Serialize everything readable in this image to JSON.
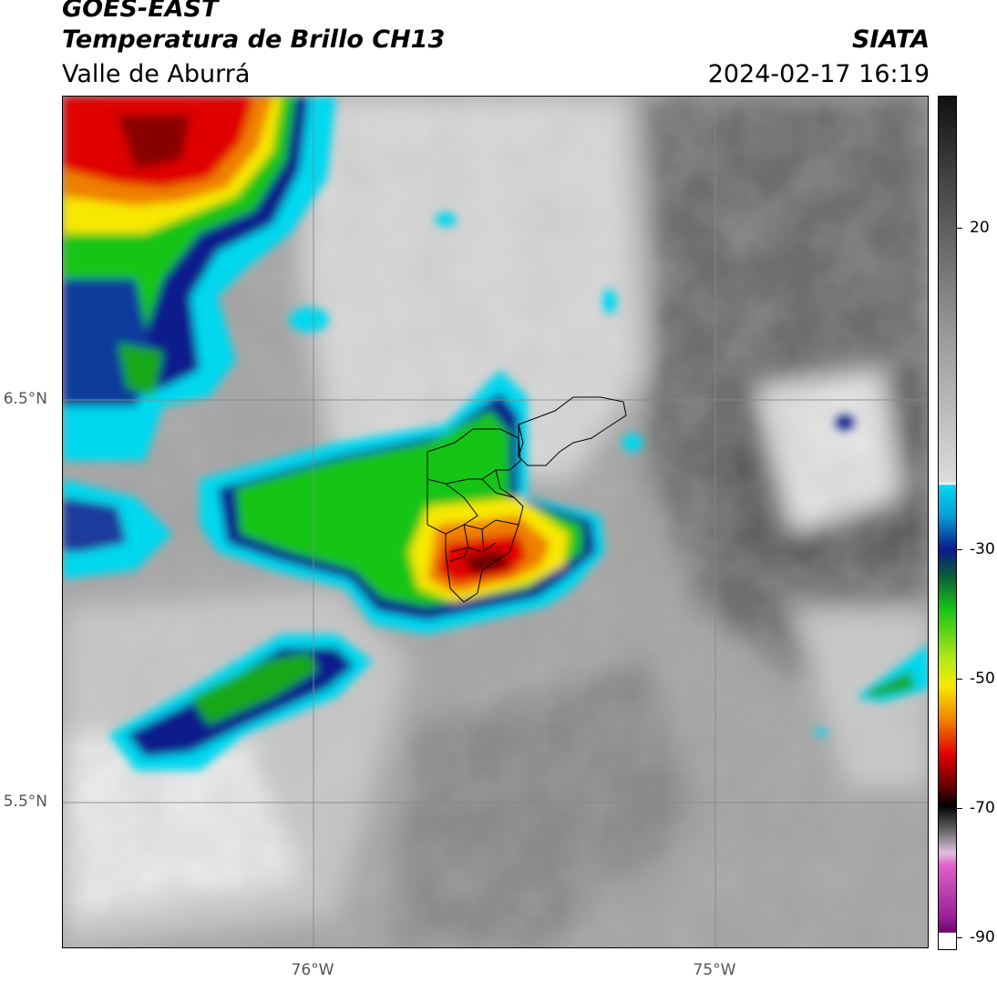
{
  "header": {
    "satellite": "GOES-EAST",
    "product": "Temperatura de Brillo CH13",
    "region": "Valle de Aburrá",
    "organization": "SIATA",
    "datetime": "2024-02-17 16:19"
  },
  "map": {
    "lat_labels": [
      "6.5°N",
      "5.5°N"
    ],
    "lon_labels": [
      "76°W",
      "75°W"
    ]
  },
  "colorbar": {
    "tick_labels": [
      "20",
      "-30",
      "-50",
      "-70",
      "-90"
    ],
    "colors": {
      "warm_gray_dark": "#1a1a1a",
      "warm_gray_light": "#f0f0f0",
      "cyan": "#00d8ef",
      "blue": "#0a1a8c",
      "green": "#18c418",
      "yellow": "#f8e800",
      "orange": "#f08000",
      "red": "#e00000",
      "dark_red": "#5a0000",
      "magenta": "#d040c0",
      "purple": "#7a107a"
    }
  }
}
